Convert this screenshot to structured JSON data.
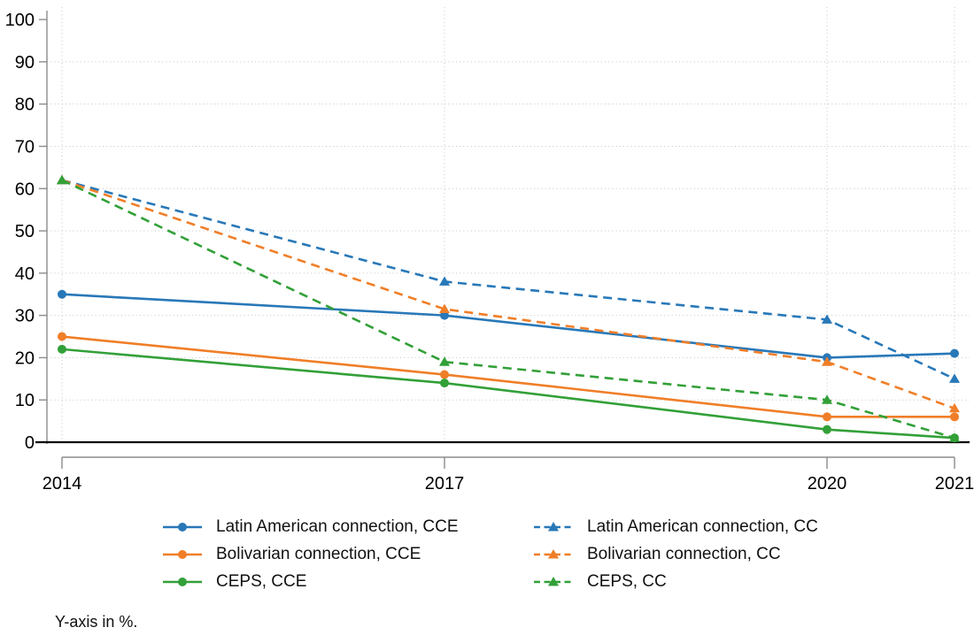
{
  "chart_data": {
    "type": "line",
    "title": "",
    "xlabel": "",
    "ylabel": "",
    "note": "Y-axis in %.",
    "x": [
      2014,
      2017,
      2020,
      2021
    ],
    "x_tick_labels": [
      "2014",
      "2017",
      "2020",
      "2021"
    ],
    "ylim": [
      0,
      100
    ],
    "y_ticks": [
      0,
      10,
      20,
      30,
      40,
      50,
      60,
      70,
      80,
      90,
      100
    ],
    "grid": true,
    "legend_position": "bottom",
    "legend_columns": [
      [
        0,
        1,
        2
      ],
      [
        3,
        4,
        5
      ]
    ],
    "colors": {
      "blue": "#2878b8",
      "orange": "#f07e28",
      "green": "#32a038",
      "axis_gray": "#8c8c8c",
      "grid_gray": "#c4c4c4",
      "zero_line": "#000000"
    },
    "series": [
      {
        "name": "Latin American connection, CCE",
        "color": "#2878b8",
        "style": "solid",
        "marker": "circle",
        "values": [
          35,
          30,
          20,
          21
        ]
      },
      {
        "name": "Bolivarian connection, CCE",
        "color": "#f07e28",
        "style": "solid",
        "marker": "circle",
        "values": [
          25,
          16,
          6,
          6
        ]
      },
      {
        "name": "CEPS, CCE",
        "color": "#32a038",
        "style": "solid",
        "marker": "circle",
        "values": [
          22,
          14,
          3,
          1
        ]
      },
      {
        "name": "Latin American connection, CC",
        "color": "#2878b8",
        "style": "dashed",
        "marker": "triangle",
        "values": [
          62,
          38,
          29,
          15
        ]
      },
      {
        "name": "Bolivarian connection, CC",
        "color": "#f07e28",
        "style": "dashed",
        "marker": "triangle",
        "values": [
          62,
          31.5,
          19,
          8
        ]
      },
      {
        "name": "CEPS, CC",
        "color": "#32a038",
        "style": "dashed",
        "marker": "triangle",
        "values": [
          62,
          19,
          10,
          1
        ]
      }
    ]
  }
}
